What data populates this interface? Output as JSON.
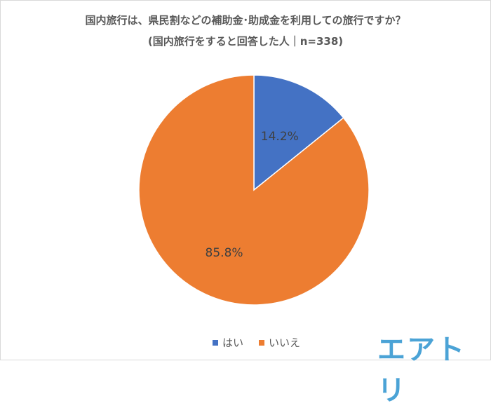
{
  "chart_data": {
    "type": "pie",
    "title": "国内旅行は、県民割などの補助金･助成金を利用しての旅行ですか？",
    "subtitle": "(国内旅行をすると回答した人｜n=338)",
    "categories": [
      "はい",
      "いいえ"
    ],
    "values": [
      14.2,
      85.8
    ],
    "labels": [
      "14.2%",
      "85.8%"
    ],
    "colors": [
      "#4472c4",
      "#ed7d31"
    ],
    "start_angle": "top, clockwise",
    "legend_position": "bottom"
  },
  "logo": "エアトリ"
}
